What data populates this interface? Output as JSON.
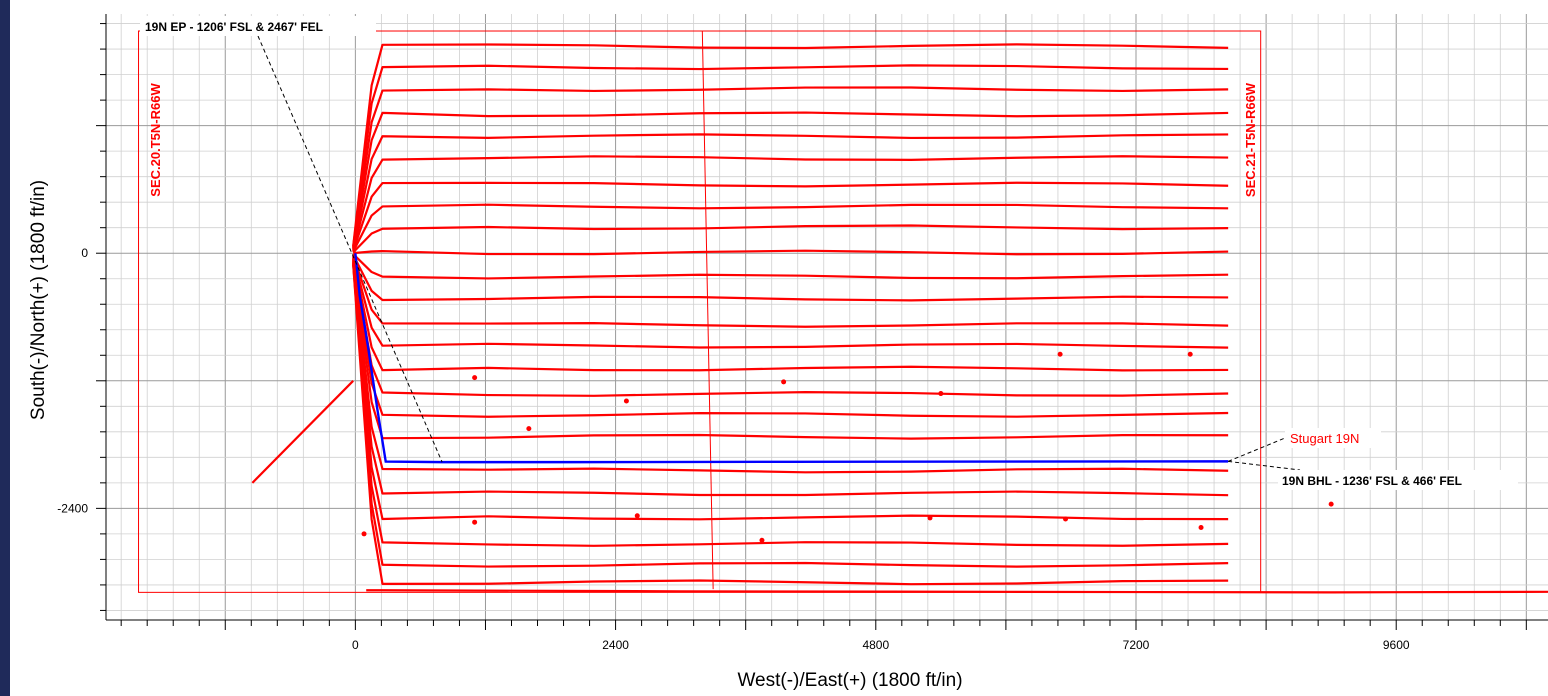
{
  "colors": {
    "side_strip": "#1f2a5a",
    "offset_wells": "#ff0000",
    "subject_well": "#0000ff",
    "major_grid": "#9a9a9a",
    "minor_grid": "#d0d0d0"
  },
  "chart_data": {
    "type": "scatter",
    "subtype": "well plan view",
    "xlabel": "West(-)/East(+) (1800 ft/in)",
    "ylabel": "South(-)/North(+) (1800 ft/in)",
    "xlim": [
      -2300,
      11000
    ],
    "ylim": [
      -3450,
      2250
    ],
    "x_ticks": [
      0,
      2400,
      4800,
      7200,
      9600
    ],
    "y_ticks": [
      0,
      -2400
    ],
    "grid": true,
    "section_labels": [
      "SEC.20.T5N-R66W",
      "SEC.21-T5N-R66W"
    ],
    "annotations": {
      "entry_point": "19N EP - 1206' FSL & 2467' FEL",
      "bottom_hole": "19N BHL - 1236' FSL & 466' FEL",
      "well_name": "Stugart 19N"
    },
    "subject_well": {
      "name": "Stugart 19N",
      "x": [
        0,
        40,
        120,
        200,
        280,
        800,
        2000,
        4000,
        6000,
        8050
      ],
      "y": [
        0,
        -400,
        -900,
        -1450,
        -1960,
        -1965,
        -1965,
        -1962,
        -1960,
        -1958
      ]
    },
    "offset_laterals_y": [
      1960,
      1750,
      1530,
      1320,
      1100,
      880,
      660,
      440,
      230,
      20,
      -220,
      -440,
      -660,
      -870,
      -1100,
      -1310,
      -1520,
      -1740,
      -2030,
      -2260,
      -2500,
      -2720,
      -2930,
      -3110
    ],
    "offset_laterals_x_end": 8050,
    "section_boundaries": [
      {
        "x": [
          -2000,
          8350
        ],
        "y": [
          2090,
          -3190
        ]
      },
      {
        "x": [
          3200,
          3300
        ],
        "y": [
          2090,
          -3160
        ]
      }
    ],
    "survey_points": [
      {
        "x": 1100,
        "y": -1170
      },
      {
        "x": 3950,
        "y": -1210
      },
      {
        "x": 5400,
        "y": -1320
      },
      {
        "x": 2500,
        "y": -1390
      },
      {
        "x": 6500,
        "y": -950
      },
      {
        "x": 7700,
        "y": -950
      },
      {
        "x": 1600,
        "y": -1650
      },
      {
        "x": 1100,
        "y": -2530
      },
      {
        "x": 2600,
        "y": -2470
      },
      {
        "x": 3750,
        "y": -2700
      },
      {
        "x": 5300,
        "y": -2490
      },
      {
        "x": 6550,
        "y": -2500
      },
      {
        "x": 7800,
        "y": -2580
      },
      {
        "x": 80,
        "y": -2640
      },
      {
        "x": 9000,
        "y": -2360
      }
    ]
  }
}
